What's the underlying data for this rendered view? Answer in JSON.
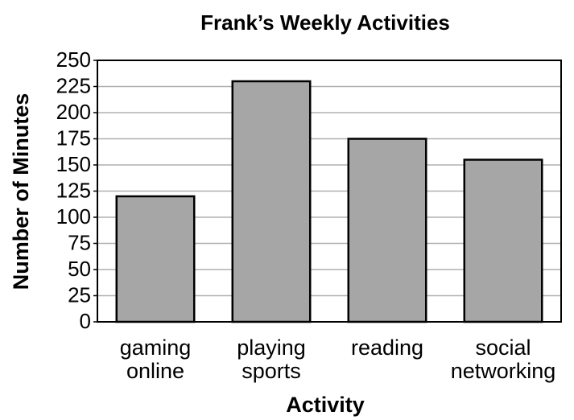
{
  "chart_data": {
    "type": "bar",
    "title": "Frank’s Weekly Activities",
    "x_label": "Activity",
    "y_label": "Number of Minutes",
    "categories": [
      "gaming online",
      "playing sports",
      "reading",
      "social networking"
    ],
    "values": [
      120,
      230,
      175,
      155
    ],
    "color": "#a6a6a6",
    "ylim": [
      0,
      250
    ],
    "yticks": [
      0,
      25,
      50,
      75,
      100,
      125,
      150,
      175,
      200,
      225,
      250
    ],
    "grid": true
  }
}
